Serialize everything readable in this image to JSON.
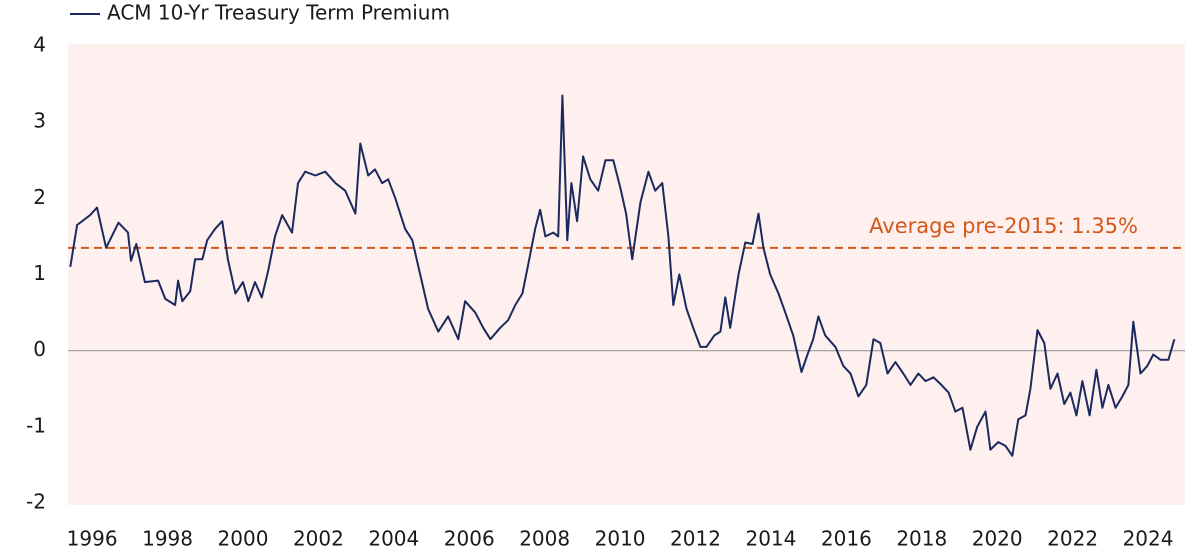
{
  "chart_data": {
    "type": "line",
    "legend": "top-left",
    "xlim": [
      1995.36,
      2024.98
    ],
    "xticks": [
      1996,
      1998,
      2000,
      2002,
      2004,
      2006,
      2008,
      2010,
      2012,
      2014,
      2016,
      2018,
      2020,
      2022,
      2024
    ],
    "ylim": [
      -2,
      4
    ],
    "yticks": [
      -2,
      -1,
      0,
      1,
      2,
      3,
      4
    ],
    "zero_line": true,
    "reference_line": {
      "value": 1.35,
      "label": "Average pre-2015: 1.35%",
      "color": "#d4581a"
    },
    "x": [
      1995.42,
      1995.6,
      1995.95,
      1996.13,
      1996.37,
      1996.7,
      1996.95,
      1997.03,
      1997.17,
      1997.4,
      1997.75,
      1997.94,
      1998.2,
      1998.28,
      1998.39,
      1998.6,
      1998.73,
      1998.92,
      1999.05,
      1999.26,
      1999.45,
      1999.6,
      1999.8,
      2000.0,
      2000.14,
      2000.32,
      2000.5,
      2000.67,
      2000.85,
      2001.04,
      2001.3,
      2001.46,
      2001.65,
      2001.92,
      2002.18,
      2002.45,
      2002.71,
      2002.98,
      2003.11,
      2003.32,
      2003.5,
      2003.69,
      2003.85,
      2004.04,
      2004.3,
      2004.49,
      2004.7,
      2004.91,
      2005.18,
      2005.44,
      2005.71,
      2005.89,
      2006.16,
      2006.37,
      2006.56,
      2006.82,
      2007.03,
      2007.22,
      2007.41,
      2007.57,
      2007.75,
      2007.88,
      2008.02,
      2008.23,
      2008.36,
      2008.47,
      2008.6,
      2008.71,
      2008.86,
      2009.02,
      2009.21,
      2009.42,
      2009.61,
      2009.82,
      2010.0,
      2010.16,
      2010.32,
      2010.54,
      2010.75,
      2010.93,
      2011.12,
      2011.28,
      2011.41,
      2011.57,
      2011.76,
      2011.94,
      2012.13,
      2012.29,
      2012.5,
      2012.66,
      2012.79,
      2012.92,
      2013.14,
      2013.32,
      2013.51,
      2013.67,
      2013.8,
      2013.98,
      2014.2,
      2014.38,
      2014.59,
      2014.81,
      2014.97,
      2015.12,
      2015.26,
      2015.44,
      2015.71,
      2015.92,
      2016.11,
      2016.32,
      2016.53,
      2016.72,
      2016.9,
      2017.09,
      2017.3,
      2017.51,
      2017.7,
      2017.91,
      2018.1,
      2018.31,
      2018.52,
      2018.71,
      2018.89,
      2019.08,
      2019.29,
      2019.47,
      2019.69,
      2019.82,
      2020.03,
      2020.22,
      2020.4,
      2020.56,
      2020.75,
      2020.88,
      2021.07,
      2021.25,
      2021.41,
      2021.6,
      2021.78,
      2021.94,
      2022.1,
      2022.26,
      2022.45,
      2022.63,
      2022.79,
      2022.95,
      2023.14,
      2023.32,
      2023.48,
      2023.61,
      2023.8,
      2023.98,
      2024.14,
      2024.33,
      2024.54,
      2024.7
    ],
    "series": [
      {
        "name": "ACM 10-Yr Treasury Term Premium",
        "color": "#1b2a5e",
        "values": [
          1.1,
          1.65,
          1.78,
          1.88,
          1.35,
          1.68,
          1.55,
          1.18,
          1.4,
          0.9,
          0.92,
          0.68,
          0.6,
          0.92,
          0.65,
          0.78,
          1.2,
          1.2,
          1.45,
          1.6,
          1.7,
          1.2,
          0.75,
          0.9,
          0.65,
          0.9,
          0.7,
          1.05,
          1.5,
          1.78,
          1.55,
          2.2,
          2.35,
          2.3,
          2.35,
          2.2,
          2.1,
          1.8,
          2.72,
          2.3,
          2.38,
          2.2,
          2.25,
          2.0,
          1.6,
          1.45,
          1.0,
          0.55,
          0.25,
          0.45,
          0.15,
          0.65,
          0.5,
          0.3,
          0.15,
          0.3,
          0.4,
          0.6,
          0.75,
          1.15,
          1.6,
          1.85,
          1.5,
          1.55,
          1.5,
          3.35,
          1.45,
          2.2,
          1.7,
          2.55,
          2.25,
          2.1,
          2.5,
          2.5,
          2.15,
          1.8,
          1.2,
          1.95,
          2.35,
          2.1,
          2.2,
          1.5,
          0.6,
          1.0,
          0.55,
          0.3,
          0.05,
          0.05,
          0.2,
          0.25,
          0.7,
          0.3,
          1.0,
          1.42,
          1.4,
          1.8,
          1.35,
          1.0,
          0.75,
          0.5,
          0.2,
          -0.28,
          -0.05,
          0.15,
          0.45,
          0.2,
          0.05,
          -0.2,
          -0.3,
          -0.6,
          -0.45,
          0.15,
          0.1,
          -0.3,
          -0.15,
          -0.3,
          -0.45,
          -0.3,
          -0.4,
          -0.35,
          -0.45,
          -0.55,
          -0.8,
          -0.75,
          -1.3,
          -1.0,
          -0.8,
          -1.3,
          -1.2,
          -1.25,
          -1.38,
          -0.9,
          -0.85,
          -0.5,
          0.27,
          0.1,
          -0.5,
          -0.3,
          -0.7,
          -0.55,
          -0.85,
          -0.4,
          -0.85,
          -0.25,
          -0.75,
          -0.45,
          -0.75,
          -0.6,
          -0.45,
          0.38,
          -0.3,
          -0.2,
          -0.05,
          -0.12,
          -0.12,
          0.15
        ]
      }
    ]
  }
}
